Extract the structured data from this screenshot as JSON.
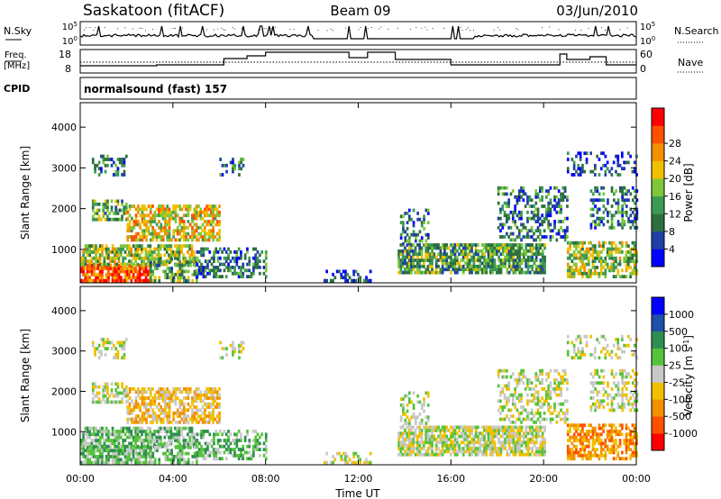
{
  "header": {
    "station": "Saskatoon (fitACF)",
    "beam": "Beam 09",
    "date": "03/Jun/2010"
  },
  "panels": {
    "nsky": {
      "left_label": "N.Sky",
      "left_ticks": [
        "10^5",
        "10^0"
      ],
      "right_label": "N.Search",
      "right_ticks": [
        "10^5",
        "10^0"
      ]
    },
    "freq": {
      "left_label_1": "Freq.",
      "left_label_2": "[MHz]",
      "left_ticks": [
        "18",
        "8"
      ],
      "right_label": "Nave",
      "right_ticks": [
        "60",
        "0"
      ]
    },
    "cpid": {
      "label": "CPID",
      "text": "normalsound (fast) 157"
    }
  },
  "colors": {
    "power": [
      "#0000ff",
      "#1f3fa8",
      "#2f6f3f",
      "#3c9a55",
      "#7fc73a",
      "#f0c000",
      "#f29000",
      "#ff5000",
      "#ff0000"
    ],
    "velocity": [
      "#ff0000",
      "#ff5000",
      "#f29000",
      "#f0c000",
      "#c8c8c8",
      "#56c43a",
      "#2f8f50",
      "#1f4fa8",
      "#0000ff"
    ]
  },
  "chart_data": [
    {
      "type": "heatmap",
      "title": "Power",
      "ylabel": "Slant Range [km]",
      "xlabel": "",
      "x_ticks": [
        "00:00",
        "04:00",
        "08:00",
        "12:00",
        "16:00",
        "20:00",
        "00:00"
      ],
      "x_range_hours": [
        0,
        24
      ],
      "ylim": [
        180,
        4600
      ],
      "y_ticks": [
        "1000",
        "2000",
        "3000",
        "4000"
      ],
      "colorbar_label": "Power [dB]",
      "colorbar_ticks": [
        "4",
        "8",
        "12",
        "16",
        "20",
        "24",
        "28"
      ],
      "colorbar_range": [
        0,
        30
      ]
    },
    {
      "type": "heatmap",
      "title": "Velocity",
      "ylabel": "Slant Range [km]",
      "xlabel": "Time UT",
      "x_ticks": [
        "00:00",
        "04:00",
        "08:00",
        "12:00",
        "16:00",
        "20:00",
        "00:00"
      ],
      "x_range_hours": [
        0,
        24
      ],
      "ylim": [
        180,
        4600
      ],
      "y_ticks": [
        "1000",
        "2000",
        "3000",
        "4000"
      ],
      "colorbar_label": "Velocity [m s^-1]",
      "colorbar_ticks": [
        "1000",
        "500",
        "100",
        "25",
        "-25",
        "-100",
        "-500",
        "-1000"
      ]
    }
  ]
}
